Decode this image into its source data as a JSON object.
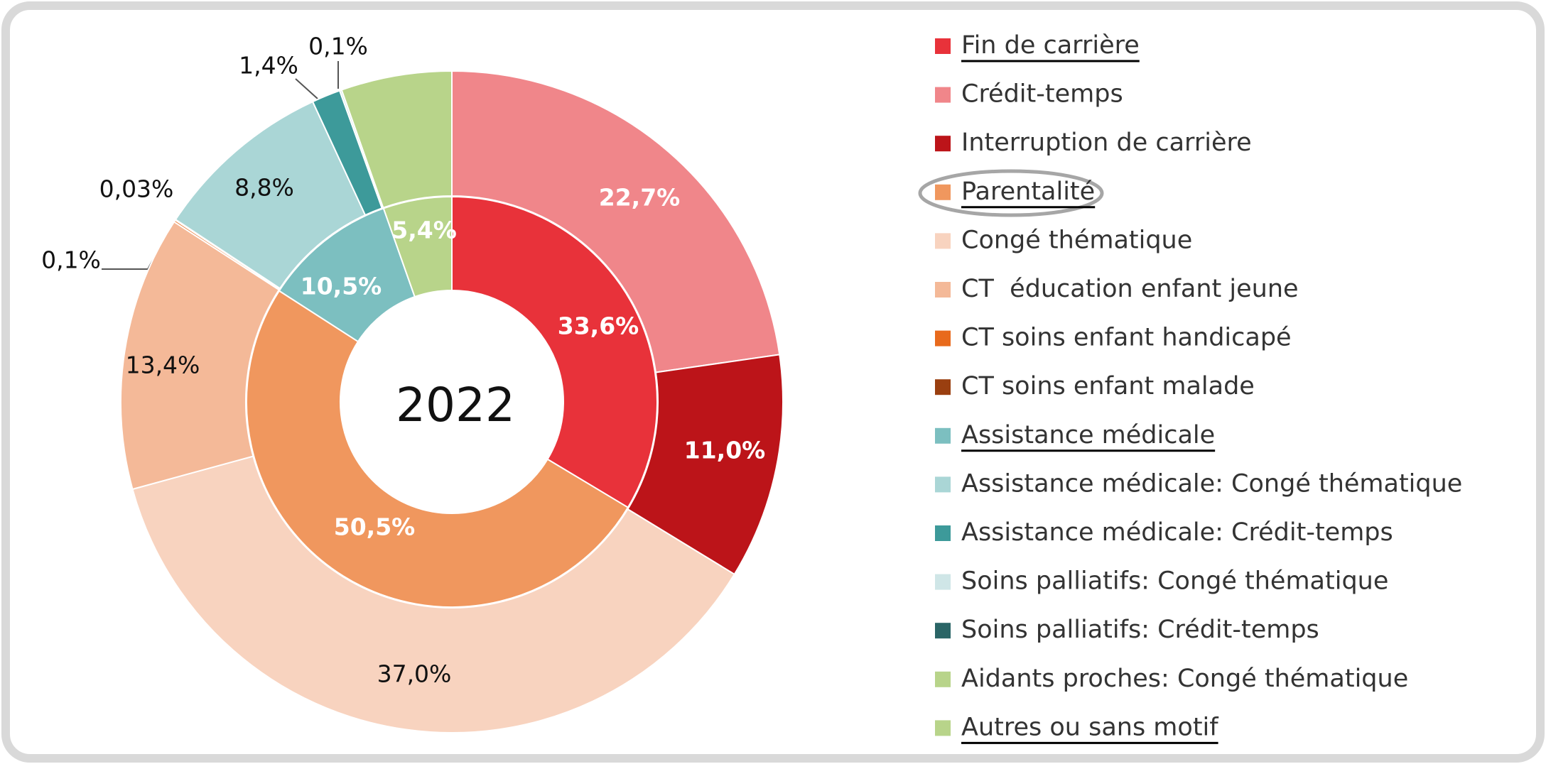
{
  "chart_data": {
    "type": "nested-donut",
    "center_label": "2022",
    "inner": {
      "values": [
        33.6,
        50.5,
        10.5,
        5.4
      ],
      "value_labels": [
        "33,6%",
        "50,5%",
        "10,5%",
        "5,4%"
      ],
      "colors": [
        "#e8323a",
        "#f0975e",
        "#7cbfc0",
        "#b8d48a"
      ],
      "label_colors": [
        "#ffffff",
        "#ffffff",
        "#ffffff",
        "#ffffff"
      ]
    },
    "outer": {
      "values": [
        22.7,
        11.0,
        37.0,
        13.4,
        0.1,
        0.03,
        8.8,
        1.4,
        0.1,
        5.4
      ],
      "value_labels": [
        "22,7%",
        "11,0%",
        "37,0%",
        "13,4%",
        "0,1%",
        "0,03%",
        "8,8%",
        "1,4%",
        "0,1%",
        null
      ],
      "colors": [
        "#f0868a",
        "#bc1419",
        "#f8d3bf",
        "#f4b998",
        "#e86a1c",
        "#9a3f10",
        "#aad6d6",
        "#3d9a9a",
        "#cfe6e7",
        "#b8d48a"
      ],
      "label_colors": [
        "#ffffff",
        "#ffffff",
        "#111111",
        "#111111",
        "#111111",
        "#111111",
        "#111111",
        "#111111",
        "#111111",
        "#111111"
      ]
    },
    "legend": [
      {
        "name": "Fin de carrière",
        "color": "#e8323a",
        "underline": true
      },
      {
        "name": "Crédit-temps",
        "color": "#f0868a",
        "underline": false
      },
      {
        "name": "Interruption de carrière",
        "color": "#bc1419",
        "underline": false
      },
      {
        "name": "Parentalité",
        "color": "#f0975e",
        "underline": true
      },
      {
        "name": "Congé thématique",
        "color": "#f8d3bf",
        "underline": false
      },
      {
        "name": "CT  éducation enfant jeune",
        "color": "#f4b998",
        "underline": false
      },
      {
        "name": "CT soins enfant handicapé",
        "color": "#e86a1c",
        "underline": false
      },
      {
        "name": "CT soins enfant malade",
        "color": "#9a3f10",
        "underline": false
      },
      {
        "name": "Assistance médicale",
        "color": "#7cbfc0",
        "underline": true
      },
      {
        "name": "Assistance médicale: Congé thématique",
        "color": "#aad6d6",
        "underline": false
      },
      {
        "name": "Assistance médicale: Crédit-temps",
        "color": "#3d9a9a",
        "underline": false
      },
      {
        "name": "Soins palliatifs: Congé thématique",
        "color": "#cfe6e7",
        "underline": false
      },
      {
        "name": "Soins palliatifs: Crédit-temps",
        "color": "#2a6566",
        "underline": false
      },
      {
        "name": "Aidants proches: Congé thématique",
        "color": "#b8d48a",
        "underline": false
      },
      {
        "name": "Autres ou sans motif",
        "color": "#b8d48a",
        "underline": true
      }
    ]
  }
}
